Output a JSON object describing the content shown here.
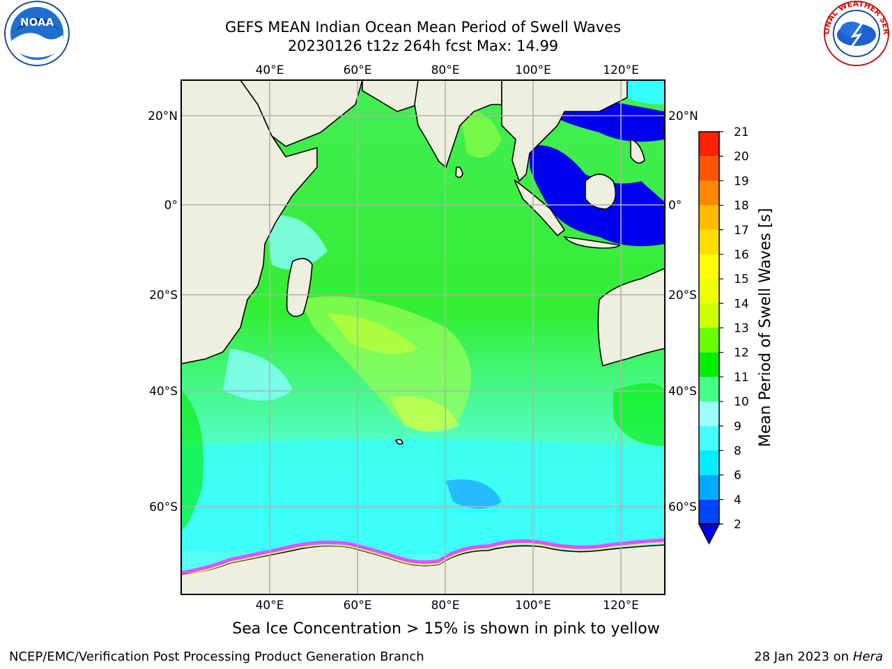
{
  "title_line1": "GEFS MEAN Indian Ocean Mean Period of Swell Waves",
  "title_line2": "20230126 t12z 264h fcst   Max: 14.99",
  "caption": "Sea Ice Concentration > 15% is shown in pink to yellow",
  "footer_left": "NCEP/EMC/Verification Post Processing Product Generation Branch",
  "footer_right_date": "28 Jan 2023 on ",
  "footer_right_machine": "Hera",
  "logos": {
    "left": "NOAA",
    "right": "NATIONAL WEATHER SERVICE"
  },
  "map": {
    "lon_labels": [
      "40°E",
      "60°E",
      "80°E",
      "100°E",
      "120°E"
    ],
    "lat_labels": [
      "20°N",
      "0°",
      "20°S",
      "40°S",
      "60°S"
    ],
    "land_color": "#efefdf",
    "grid_color": "#b0b0b0"
  },
  "colorbar": {
    "label": "Mean Period of Swell Waves [s]",
    "ticks": [
      "2",
      "4",
      "6",
      "8",
      "9",
      "10",
      "11",
      "12",
      "13",
      "14",
      "15",
      "16",
      "17",
      "18",
      "19",
      "20",
      "21"
    ],
    "colors": [
      "#0044ff",
      "#00aaff",
      "#00eeff",
      "#44ffff",
      "#99ffff",
      "#44ff88",
      "#00ee00",
      "#66ff00",
      "#ccff00",
      "#eeff00",
      "#ffff00",
      "#ffdd00",
      "#ffbb00",
      "#ff8800",
      "#ff5500",
      "#ff2200",
      "#ff0000"
    ],
    "underflow_color": "#0000ee"
  }
}
